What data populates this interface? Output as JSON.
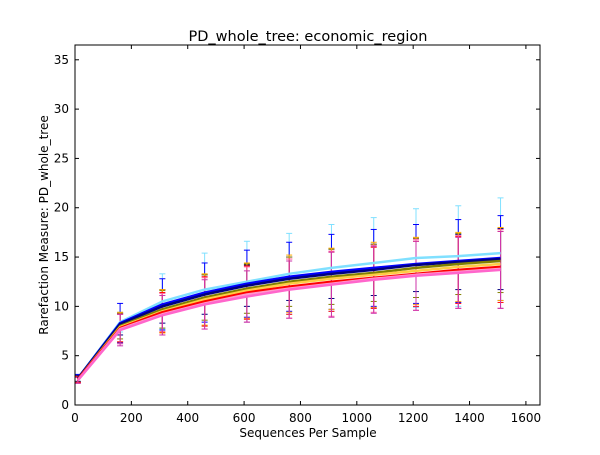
{
  "chart_data": {
    "type": "line",
    "title": "PD_whole_tree: economic_region",
    "xlabel": "Sequences Per Sample",
    "ylabel": "Rarefaction Measure: PD_whole_tree",
    "xlim": [
      0,
      1650
    ],
    "ylim": [
      0,
      36.5
    ],
    "xticks": [
      0,
      200,
      400,
      600,
      800,
      1000,
      1200,
      1400,
      1600
    ],
    "yticks": [
      0,
      5,
      10,
      15,
      20,
      25,
      30,
      35
    ],
    "xtick_labels": [
      "0",
      "200",
      "400",
      "600",
      "800",
      "1000",
      "1200",
      "1400",
      "1600"
    ],
    "ytick_labels": [
      "0",
      "5",
      "10",
      "15",
      "20",
      "25",
      "30",
      "35"
    ],
    "grid": false,
    "legend": "none",
    "x": [
      10,
      160,
      310,
      460,
      610,
      760,
      910,
      1060,
      1210,
      1360,
      1510
    ],
    "series": [
      {
        "color": "#80e0ff",
        "values": [
          2.7,
          8.4,
          10.5,
          11.7,
          12.5,
          13.3,
          13.9,
          14.4,
          14.9,
          15.1,
          15.4
        ],
        "err": [
          0.4,
          1.0,
          2.8,
          3.7,
          4.1,
          4.1,
          4.4,
          4.6,
          5.0,
          5.1,
          5.6
        ],
        "errcolor": "#80e0ff"
      },
      {
        "color": "#0000ff",
        "values": [
          2.7,
          8.3,
          10.2,
          11.4,
          12.3,
          13.0,
          13.5,
          13.9,
          14.3,
          14.6,
          14.9
        ],
        "err": [
          0.4,
          2.0,
          2.6,
          3.0,
          3.4,
          3.5,
          3.8,
          3.9,
          4.0,
          4.2,
          4.3
        ],
        "errcolor": "#0000ff"
      },
      {
        "color": "#000080",
        "values": [
          2.7,
          8.2,
          10.0,
          11.2,
          12.1,
          12.8,
          13.3,
          13.7,
          14.2,
          14.5,
          14.8
        ],
        "err": [
          0.3,
          1.1,
          1.7,
          2.0,
          2.1,
          2.2,
          2.5,
          2.6,
          2.7,
          2.8,
          3.1
        ],
        "errcolor": "#000080"
      },
      {
        "color": "#808000",
        "values": [
          2.6,
          8.0,
          9.7,
          10.9,
          11.8,
          12.5,
          13.0,
          13.4,
          13.9,
          14.3,
          14.6
        ],
        "err": [
          0.3,
          1.3,
          1.9,
          2.3,
          2.5,
          2.5,
          2.8,
          2.9,
          3.0,
          3.1,
          3.2
        ],
        "errcolor": "#808000"
      },
      {
        "color": "#ffcc44",
        "values": [
          2.6,
          7.9,
          9.5,
          10.7,
          11.6,
          12.3,
          12.8,
          13.2,
          13.6,
          14.0,
          14.3
        ],
        "err": [
          0.3,
          1.5,
          2.2,
          2.6,
          2.8,
          2.9,
          3.1,
          3.3,
          3.4,
          3.5,
          3.7
        ],
        "errcolor": "#ffaa00"
      },
      {
        "color": "#ff0000",
        "values": [
          2.6,
          7.8,
          9.4,
          10.5,
          11.4,
          12.0,
          12.5,
          12.9,
          13.3,
          13.7,
          14.0
        ],
        "err": [
          0.3,
          1.4,
          2.0,
          2.5,
          2.7,
          2.8,
          3.0,
          3.1,
          3.3,
          3.4,
          3.6
        ],
        "errcolor": "#ff0000"
      },
      {
        "color": "#ff99cc",
        "values": [
          2.5,
          7.7,
          9.2,
          10.3,
          11.2,
          11.8,
          12.3,
          12.8,
          13.2,
          13.5,
          13.8
        ],
        "err": [
          0.3,
          1.5,
          2.1,
          2.6,
          2.8,
          3.0,
          3.3,
          3.4,
          3.6,
          3.7,
          4.0
        ],
        "errcolor": "#ff66aa"
      },
      {
        "color": "#ff66cc",
        "values": [
          2.5,
          7.6,
          9.1,
          10.2,
          11.0,
          11.7,
          12.2,
          12.7,
          13.1,
          13.4,
          13.7
        ],
        "err": [
          0.3,
          1.6,
          2.0,
          2.5,
          2.6,
          2.9,
          3.3,
          3.4,
          3.5,
          3.6,
          3.9
        ],
        "errcolor": "#cc33aa"
      }
    ]
  }
}
